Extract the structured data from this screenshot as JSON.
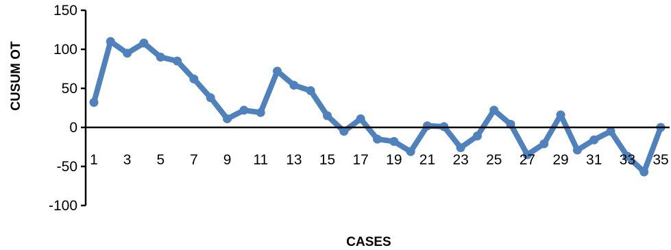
{
  "chart_data": {
    "type": "line",
    "title": "",
    "xlabel": "CASES",
    "ylabel": "CUSUM OT",
    "ylim": [
      -100,
      150
    ],
    "yticks": [
      150,
      100,
      50,
      0,
      -50,
      -100
    ],
    "x": [
      1,
      2,
      3,
      4,
      5,
      6,
      7,
      8,
      9,
      10,
      11,
      12,
      13,
      14,
      15,
      16,
      17,
      18,
      19,
      20,
      21,
      22,
      23,
      24,
      25,
      26,
      27,
      28,
      29,
      30,
      31,
      32,
      33,
      34,
      35
    ],
    "xtick_labels": [
      "1",
      "3",
      "5",
      "7",
      "9",
      "11",
      "13",
      "15",
      "17",
      "19",
      "21",
      "23",
      "25",
      "27",
      "29",
      "31",
      "33",
      "35"
    ],
    "series": [
      {
        "values": [
          32,
          110,
          95,
          108,
          90,
          85,
          62,
          38,
          11,
          22,
          19,
          72,
          54,
          47,
          15,
          -5,
          11,
          -15,
          -18,
          -31,
          2,
          1,
          -26,
          -11,
          22,
          4,
          -35,
          -21,
          16,
          -29,
          -16,
          -5,
          -37,
          -57,
          0
        ]
      }
    ],
    "grid": false,
    "legend": "none",
    "colors": {
      "line": "#4f81bd",
      "axis": "#000000"
    }
  }
}
